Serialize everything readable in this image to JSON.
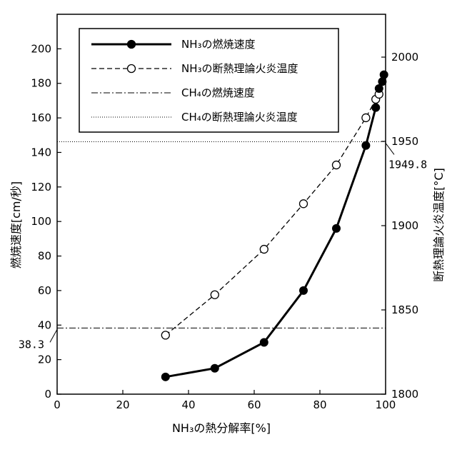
{
  "chart_data": {
    "type": "line",
    "xlabel": "NH₃の熱分解率[%]",
    "ylabel_left": "燃焼速度[cm/秒]",
    "ylabel_right": "断熱理論火炎温度[°C]",
    "xlim": [
      0,
      100
    ],
    "ylim_left": [
      0,
      220
    ],
    "ylim_right": [
      1800,
      2000
    ],
    "xticks": [
      0,
      20,
      40,
      60,
      80,
      100
    ],
    "yticks_left": [
      0,
      20,
      40,
      60,
      80,
      100,
      120,
      140,
      160,
      180,
      200
    ],
    "yticks_right": [
      1800,
      1850,
      1900,
      1950,
      2000
    ],
    "grid": false,
    "legend_placement": "top",
    "series": [
      {
        "name": "NH₃の燃焼速度",
        "axis": "left",
        "style": "solid-filled-circle",
        "x": [
          33,
          48,
          63,
          75,
          85,
          94,
          97,
          98,
          99,
          99.5
        ],
        "y": [
          10,
          15,
          30,
          60,
          96,
          144,
          166,
          177,
          181,
          185
        ]
      },
      {
        "name": "NH₃の断熱理論火炎温度",
        "axis": "right",
        "style": "dashed-open-circle",
        "x": [
          33,
          48,
          63,
          75,
          85,
          94,
          97,
          98
        ],
        "y": [
          1835,
          1859,
          1886,
          1913,
          1936,
          1964,
          1975,
          1978
        ]
      },
      {
        "name": "CH₄の燃焼速度",
        "axis": "left",
        "style": "dash-dot",
        "constant": 38.3
      },
      {
        "name": "CH₄の断熱理論火炎温度",
        "axis": "right",
        "style": "dotted",
        "constant": 1949.8
      }
    ],
    "annotations": [
      {
        "text": "38.3",
        "axis": "left",
        "value": 38.3
      },
      {
        "text": "1949.8",
        "axis": "right",
        "value": 1949.8
      }
    ]
  }
}
